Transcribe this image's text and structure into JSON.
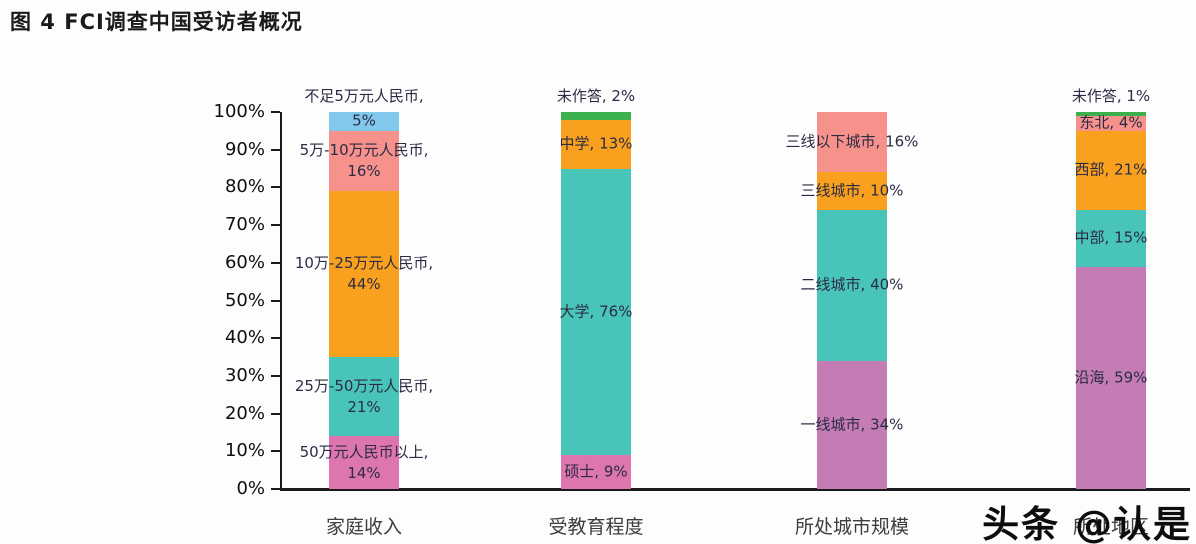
{
  "title": "图 4 FCI调查中国受访者概况",
  "watermark": "头条 @认是",
  "chart_data": {
    "type": "stacked-bar",
    "title": "图 4 FCI调查中国受访者概况",
    "ylim": [
      0,
      100
    ],
    "y_ticks": [
      "0%",
      "10%",
      "20%",
      "30%",
      "40%",
      "50%",
      "60%",
      "70%",
      "80%",
      "90%",
      "100%"
    ],
    "grid": false,
    "legend": "none",
    "value_suffix": "%",
    "categories": [
      "家庭收入",
      "受教育程度",
      "所处城市规模",
      "所处地区"
    ],
    "groups": [
      {
        "segments": [
          {
            "label": "50万元人民币以上",
            "value": 14,
            "color": "#DD76AE",
            "two_line": true
          },
          {
            "label": "25万-50万元人民币",
            "value": 21,
            "color": "#48C4B8",
            "two_line": true
          },
          {
            "label": "10万-25万元人民币",
            "value": 44,
            "color": "#F9A11E",
            "two_line": true
          },
          {
            "label": "5万-10万元人民币",
            "value": 16,
            "color": "#F6918C",
            "two_line": true
          },
          {
            "label": "不足5万元人民币",
            "value": 5,
            "color": "#82C8EC",
            "two_line": true,
            "name_above": true
          }
        ]
      },
      {
        "segments": [
          {
            "label": "硕士",
            "value": 9,
            "color": "#DD76AE"
          },
          {
            "label": "大学",
            "value": 76,
            "color": "#48C4B8"
          },
          {
            "label": "中学",
            "value": 13,
            "color": "#F9A11E"
          },
          {
            "label": "未作答",
            "value": 2,
            "color": "#3BB04C",
            "above": true
          }
        ]
      },
      {
        "segments": [
          {
            "label": "一线城市",
            "value": 34,
            "color": "#C47CB4"
          },
          {
            "label": "二线城市",
            "value": 40,
            "color": "#48C4B8"
          },
          {
            "label": "三线城市",
            "value": 10,
            "color": "#F9A11E"
          },
          {
            "label": "三线以下城市",
            "value": 16,
            "color": "#F6918C"
          }
        ]
      },
      {
        "segments": [
          {
            "label": "沿海",
            "value": 59,
            "color": "#C47CB4"
          },
          {
            "label": "中部",
            "value": 15,
            "color": "#48C4B8"
          },
          {
            "label": "西部",
            "value": 21,
            "color": "#F9A11E"
          },
          {
            "label": "东北",
            "value": 4,
            "color": "#F6918C"
          },
          {
            "label": "未作答",
            "value": 1,
            "color": "#3BB04C",
            "above": true
          }
        ]
      }
    ]
  }
}
